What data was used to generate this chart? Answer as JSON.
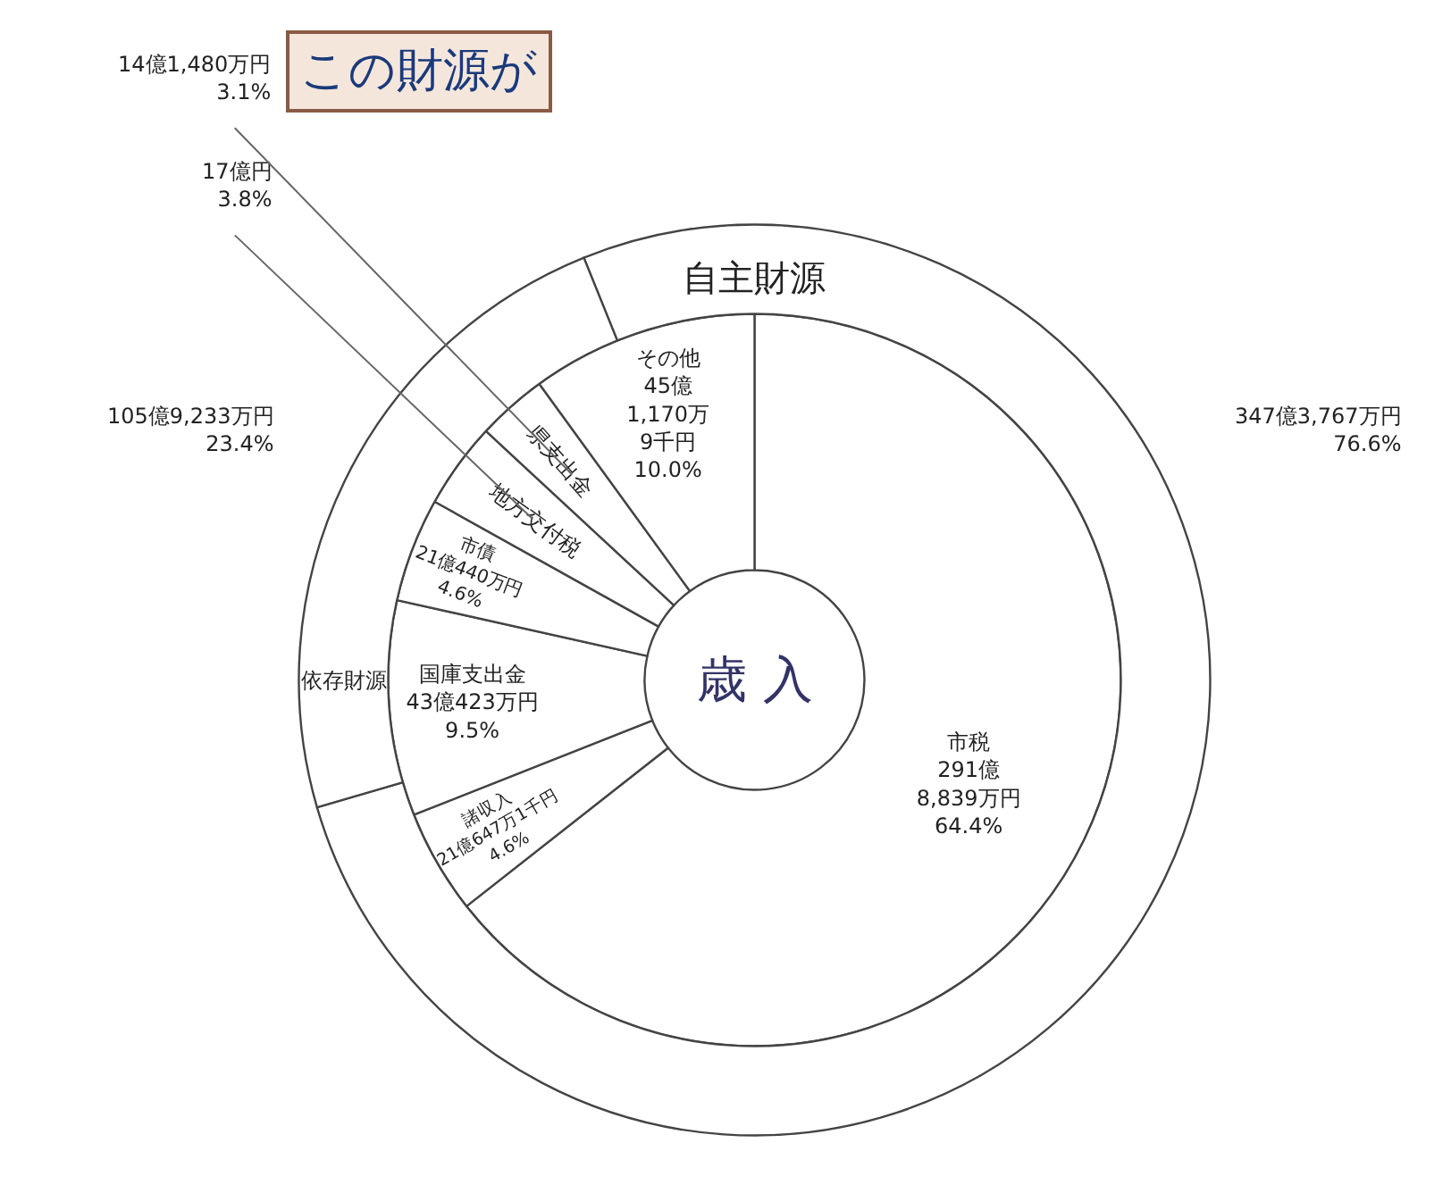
{
  "chart_data": [
    {
      "type": "donut",
      "title": "この財源が",
      "annotations": [
        "歳 入"
      ],
      "categories": [
        "市税",
        "諸収入",
        "国庫支出金",
        "市債",
        "地方交付税",
        "県支出金",
        "その他"
      ],
      "values": [
        64.4,
        4.6,
        9.5,
        4.6,
        3.8,
        3.1,
        10.0
      ],
      "value_labels": [
        "291億\n8,839万円\n64.4%",
        "21億647万1千円\n4.6%",
        "43億423万円\n9.5%",
        "21億440万円\n4.6%",
        "17億円\n3.8%",
        "14億1,480万円\n3.1%",
        "45億\n1,170万\n9千円\n10.0%"
      ],
      "colors": [
        "#ffffff",
        "#ffffff",
        "#ffffff",
        "#ffffff",
        "#ffffff",
        "#ffffff",
        "#ffffff"
      ]
    },
    {
      "type": "donut",
      "categories": [
        "自主財源",
        "依存財源"
      ],
      "values": [
        76.6,
        23.4
      ],
      "value_labels": [
        "347億3,767万円\n76.6%",
        "105億9,233万円\n23.4%"
      ],
      "colors": [
        "#ffffff",
        "#ffffff"
      ]
    }
  ]
}
